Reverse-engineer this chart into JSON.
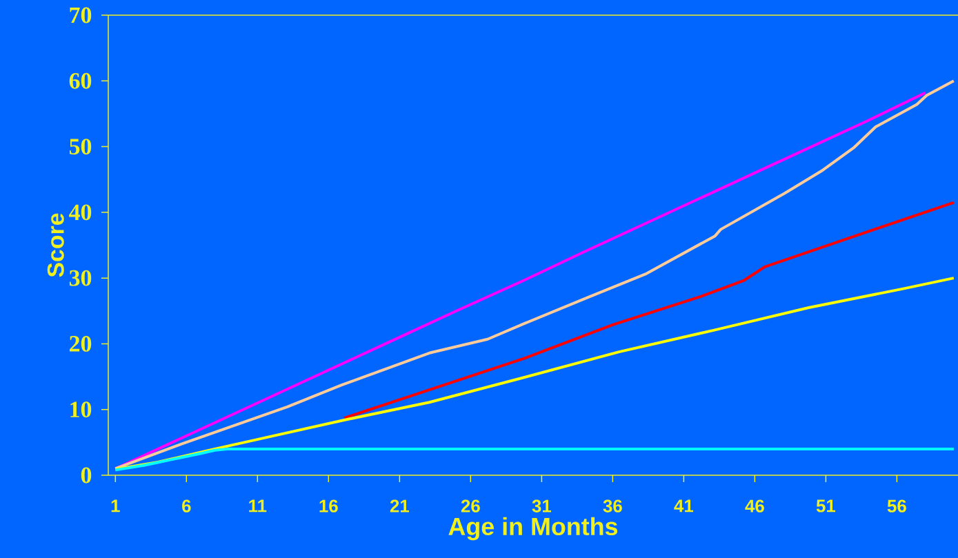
{
  "chart_data": {
    "type": "line",
    "xlabel": "Age in Months",
    "ylabel": "Score",
    "xlim": [
      0.5,
      60.3
    ],
    "ylim": [
      0,
      70
    ],
    "xticks": [
      1,
      6,
      11,
      16,
      21,
      26,
      31,
      36,
      41,
      46,
      51,
      56
    ],
    "yticks": [
      0,
      10,
      20,
      30,
      40,
      50,
      60,
      70
    ],
    "marker": "none",
    "line_style": "solid",
    "series": [
      {
        "color": "#ff00ff",
        "x": [
          1,
          5,
          9,
          13,
          17,
          21,
          25,
          29.8,
          34,
          38,
          42,
          46,
          50,
          54,
          58
        ],
        "values": [
          1,
          5,
          9,
          13,
          17,
          21,
          25,
          29.7,
          34,
          38,
          42,
          46,
          50,
          54,
          58.2
        ]
      },
      {
        "color": "#ffcc99",
        "x": [
          1,
          5.7,
          13.1,
          16.9,
          23.1,
          27.2,
          29.8,
          34.2,
          38.3,
          43.2,
          43.6,
          48.1,
          50.7,
          53,
          54.5,
          57.4,
          58.1,
          60
        ],
        "values": [
          1,
          4.8,
          10.4,
          13.7,
          18.6,
          20.7,
          23.1,
          27,
          30.6,
          36.4,
          37.4,
          42.9,
          46.3,
          49.9,
          53,
          56.4,
          57.8,
          60
        ]
      },
      {
        "color": "#ff0000",
        "x": [
          17.1,
          23.1,
          29.8,
          36,
          42.2,
          45.2,
          46.7,
          52.1,
          60
        ],
        "values": [
          8.7,
          13,
          17.8,
          22.9,
          27.2,
          29.6,
          31.7,
          35.7,
          41.5
        ]
      },
      {
        "color": "#ffff00",
        "x": [
          1,
          4,
          8,
          11.1,
          17.1,
          23.1,
          29.8,
          36.5,
          43.2,
          49.8,
          56.5,
          60
        ],
        "values": [
          0.9,
          2,
          4,
          5.5,
          8.4,
          11.1,
          14.9,
          18.8,
          22.1,
          25.5,
          28.4,
          30
        ]
      },
      {
        "color": "#00ffff",
        "x": [
          1,
          3,
          5,
          7,
          8,
          9,
          60
        ],
        "values": [
          0.8,
          1.5,
          2.4,
          3.3,
          3.8,
          4,
          4
        ]
      }
    ]
  }
}
